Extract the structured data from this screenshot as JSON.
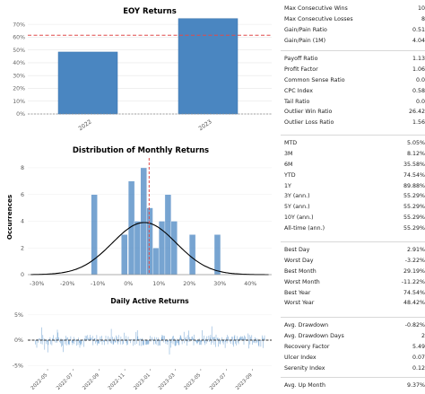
{
  "colors": {
    "bar": "#4a86c1",
    "bar_edge": "#3b73ad",
    "accent": "#e04a4a",
    "line": "#000000",
    "zero": "#555555"
  },
  "chart_data": [
    {
      "type": "bar",
      "title": "EOY Returns",
      "categories": [
        "2022",
        "2023"
      ],
      "values": [
        48.4,
        74.5
      ],
      "ylim": [
        0,
        75
      ],
      "yticks": [
        "0%",
        "10%",
        "20%",
        "30%",
        "40%",
        "50%",
        "60%",
        "70%"
      ],
      "reference_line": 61.5,
      "grid": true
    },
    {
      "type": "bar",
      "title": "Distribution of Monthly Returns",
      "ylabel": "Occurrences",
      "xlim": [
        -33,
        47
      ],
      "ylim": [
        0,
        8.6
      ],
      "xticks": [
        "-30%",
        "-20%",
        "-10%",
        "0%",
        "10%",
        "20%",
        "30%",
        "40%"
      ],
      "yticks": [
        "0",
        "2",
        "4",
        "6",
        "8"
      ],
      "bin_width": 2.05,
      "bins": [
        {
          "x": -11.2,
          "count": 6
        },
        {
          "x": -1.3,
          "count": 3
        },
        {
          "x": 1.0,
          "count": 7
        },
        {
          "x": 3.0,
          "count": 4
        },
        {
          "x": 5.0,
          "count": 8
        },
        {
          "x": 7.0,
          "count": 5
        },
        {
          "x": 9.0,
          "count": 2
        },
        {
          "x": 11.0,
          "count": 4
        },
        {
          "x": 13.0,
          "count": 6
        },
        {
          "x": 15.0,
          "count": 4
        },
        {
          "x": 21.0,
          "count": 3
        },
        {
          "x": 29.2,
          "count": 3
        }
      ],
      "mean_line": 6.8,
      "kde": {
        "mean": 5.2,
        "sd": 10.5,
        "peak": 3.9
      }
    },
    {
      "type": "bar",
      "title": "Daily Active Returns",
      "ylim": [
        -5.5,
        5.5
      ],
      "yticks": [
        "5%",
        "0%",
        "-5%"
      ],
      "x_labels": [
        "2022-05",
        "2022-07",
        "2022-09",
        "2022-11",
        "2023-01",
        "2023-03",
        "2023-05",
        "2023-07",
        "2023-09"
      ],
      "x_range": [
        "2022-04-01",
        "2023-09-30"
      ],
      "zero_line": 0
    }
  ],
  "metrics": [
    [
      [
        "Max Consecutive Wins",
        "10"
      ],
      [
        "Max Consecutive Losses",
        "8"
      ],
      [
        "Gain/Pain Ratio",
        "0.51"
      ],
      [
        "Gain/Pain (1M)",
        "4.04"
      ]
    ],
    [
      [
        "Payoff Ratio",
        "1.13"
      ],
      [
        "Profit Factor",
        "1.06"
      ],
      [
        "Common Sense Ratio",
        "0.0"
      ],
      [
        "CPC Index",
        "0.58"
      ],
      [
        "Tail Ratio",
        "0.0"
      ],
      [
        "Outlier Win Ratio",
        "26.42"
      ],
      [
        "Outlier Loss Ratio",
        "1.56"
      ]
    ],
    [
      [
        "MTD",
        "5.05%"
      ],
      [
        "3M",
        "8.12%"
      ],
      [
        "6M",
        "35.58%"
      ],
      [
        "YTD",
        "74.54%"
      ],
      [
        "1Y",
        "89.88%"
      ],
      [
        "3Y (ann.)",
        "55.29%"
      ],
      [
        "5Y (ann.)",
        "55.29%"
      ],
      [
        "10Y (ann.)",
        "55.29%"
      ],
      [
        "All-time (ann.)",
        "55.29%"
      ]
    ],
    [
      [
        "Best Day",
        "2.91%"
      ],
      [
        "Worst Day",
        "-3.22%"
      ],
      [
        "Best Month",
        "29.19%"
      ],
      [
        "Worst Month",
        "-11.22%"
      ],
      [
        "Best Year",
        "74.54%"
      ],
      [
        "Worst Year",
        "48.42%"
      ]
    ],
    [
      [
        "Avg. Drawdown",
        "-0.82%"
      ],
      [
        "Avg. Drawdown Days",
        "2"
      ],
      [
        "Recovery Factor",
        "5.49"
      ],
      [
        "Ulcer Index",
        "0.07"
      ],
      [
        "Serenity Index",
        "0.12"
      ]
    ],
    [
      [
        "Avg. Up Month",
        "9.37%"
      ]
    ]
  ]
}
